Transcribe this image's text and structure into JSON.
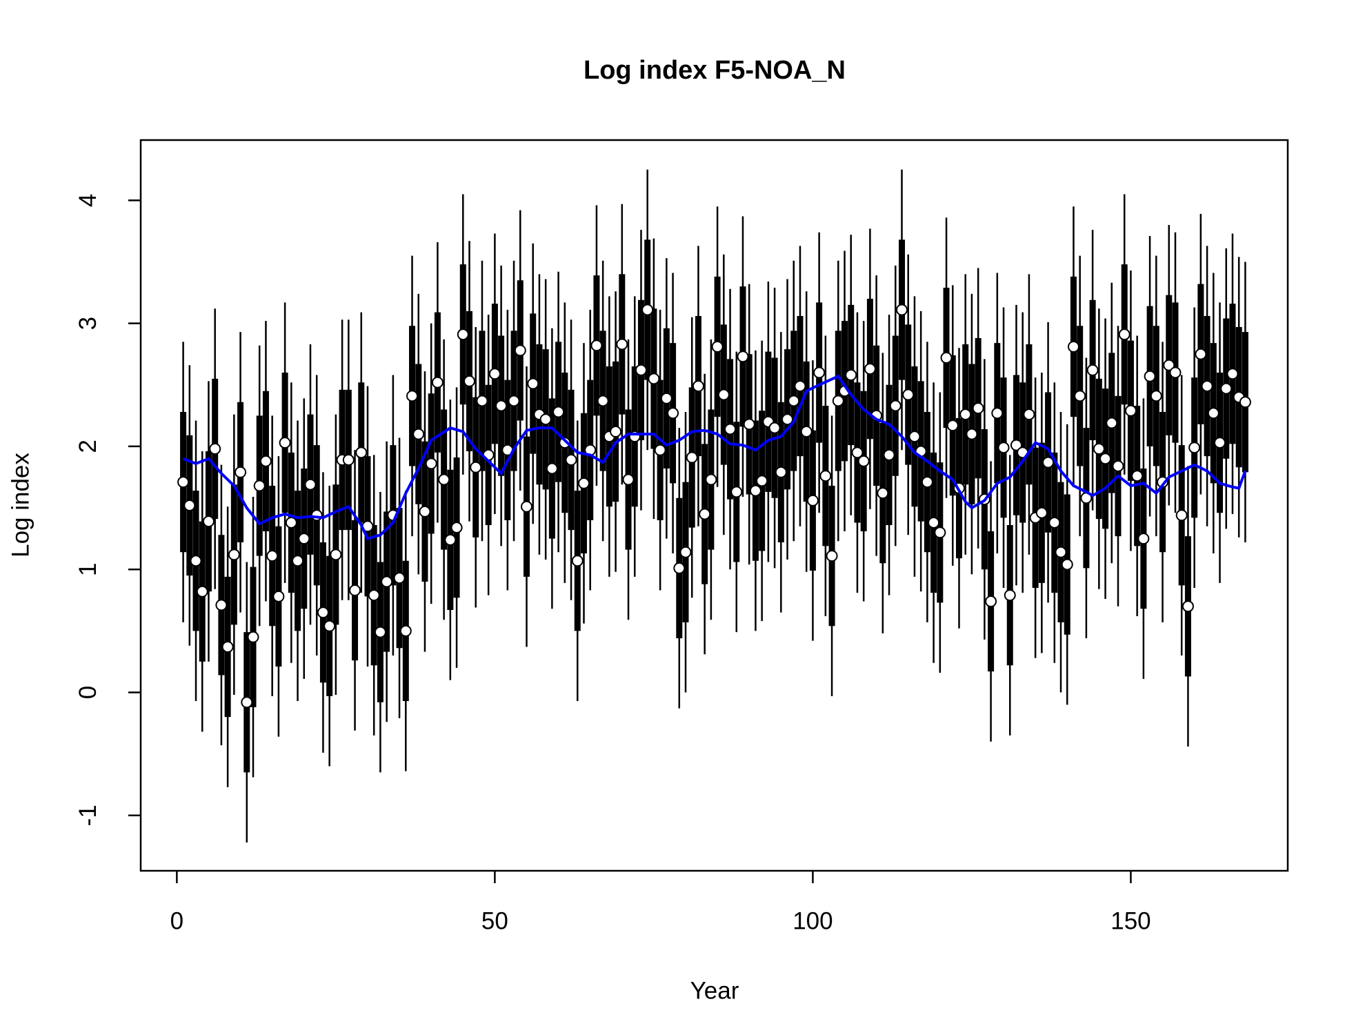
{
  "chart_data": {
    "type": "errorbar",
    "title": "Log index F5-NOA_N",
    "xlabel": "Year",
    "ylabel": "Log index",
    "x": [
      1,
      2,
      3,
      4,
      5,
      6,
      7,
      8,
      9,
      10,
      11,
      12,
      13,
      14,
      15,
      16,
      17,
      18,
      19,
      20,
      21,
      22,
      23,
      24,
      25,
      26,
      27,
      28,
      29,
      30,
      31,
      32,
      33,
      34,
      35,
      36,
      37,
      38,
      39,
      40,
      41,
      42,
      43,
      44,
      45,
      46,
      47,
      48,
      49,
      50,
      51,
      52,
      53,
      54,
      55,
      56,
      57,
      58,
      59,
      60,
      61,
      62,
      63,
      64,
      65,
      66,
      67,
      68,
      69,
      70,
      71,
      72,
      73,
      74,
      75,
      76,
      77,
      78,
      79,
      80,
      81,
      82,
      83,
      84,
      85,
      86,
      87,
      88,
      89,
      90,
      91,
      92,
      93,
      94,
      95,
      96,
      97,
      98,
      99,
      100,
      101,
      102,
      103,
      104,
      105,
      106,
      107,
      108,
      109,
      110,
      111,
      112,
      113,
      114,
      115,
      116,
      117,
      118,
      119,
      120,
      121,
      122,
      123,
      124,
      125,
      126,
      127,
      128,
      129,
      130,
      131,
      132,
      133,
      134,
      135,
      136,
      137,
      138,
      139,
      140,
      141,
      142,
      143,
      144,
      145,
      146,
      147,
      148,
      149,
      150,
      151,
      152,
      153,
      154,
      155,
      156,
      157,
      158,
      159,
      160,
      161,
      162,
      163,
      164,
      165,
      166,
      167,
      168
    ],
    "series": [
      {
        "color": "#000000",
        "se": 0.57,
        "values": [
          1.71,
          1.52,
          1.07,
          0.82,
          1.39,
          1.98,
          0.71,
          0.37,
          1.12,
          1.79,
          -0.08,
          0.45,
          1.68,
          1.88,
          1.11,
          0.78,
          2.03,
          1.38,
          1.07,
          1.25,
          1.69,
          1.44,
          0.65,
          0.54,
          1.12,
          1.89,
          1.89,
          0.83,
          1.95,
          1.35,
          0.79,
          0.49,
          0.9,
          1.44,
          0.93,
          0.5,
          2.41,
          2.1,
          1.47,
          1.86,
          2.52,
          1.73,
          1.24,
          1.34,
          2.91,
          2.53,
          1.83,
          2.37,
          1.93,
          2.59,
          2.33,
          1.97,
          2.37,
          2.78,
          1.51,
          2.51,
          2.26,
          2.22,
          1.82,
          2.28,
          2.03,
          1.89,
          1.07,
          1.7,
          1.97,
          2.82,
          2.37,
          2.08,
          2.12,
          2.83,
          1.73,
          2.08,
          2.62,
          3.11,
          2.55,
          1.97,
          2.39,
          2.27,
          1.01,
          1.14,
          1.91,
          2.49,
          1.45,
          1.73,
          2.81,
          2.42,
          2.14,
          1.63,
          2.73,
          2.18,
          1.64,
          1.72,
          2.2,
          2.15,
          1.79,
          2.22,
          2.37,
          2.49,
          2.12,
          1.56,
          2.6,
          1.76,
          1.11,
          2.37,
          2.45,
          2.58,
          1.95,
          1.88,
          2.63,
          2.25,
          1.62,
          1.93,
          2.33,
          3.11,
          2.42,
          2.08,
          1.96,
          1.71,
          1.38,
          1.3,
          2.72,
          2.17,
          1.66,
          2.26,
          2.1,
          2.31,
          1.57,
          0.74,
          2.27,
          1.99,
          0.79,
          2.01,
          1.95,
          2.26,
          1.42,
          1.46,
          1.87,
          1.38,
          1.14,
          1.04,
          2.81,
          2.41,
          1.58,
          2.62,
          1.98,
          1.9,
          2.19,
          1.84,
          2.91,
          2.29,
          1.76,
          1.25,
          2.57,
          2.41,
          1.71,
          2.66,
          2.6,
          1.44,
          0.7,
          1.99,
          2.75,
          2.49,
          2.27,
          2.03,
          2.47,
          2.59,
          2.4,
          2.36
        ]
      }
    ],
    "smooth": {
      "color": "#0000ff",
      "x": [
        1,
        3,
        5,
        7,
        9,
        11,
        13,
        15,
        17,
        19,
        21,
        23,
        25,
        27,
        29,
        30,
        32,
        34,
        36,
        38,
        40,
        43,
        45,
        47,
        49,
        51,
        53,
        55,
        57,
        59,
        61,
        63,
        65,
        67,
        69,
        71,
        73,
        75,
        77,
        79,
        81,
        83,
        85,
        87,
        89,
        91,
        93,
        95,
        97,
        99,
        101,
        104,
        106,
        108,
        110,
        112,
        114,
        116,
        118,
        120,
        122,
        124,
        125,
        127,
        129,
        131,
        133,
        135,
        137,
        139,
        141,
        143,
        144,
        146,
        148,
        150,
        152,
        154,
        156,
        158,
        160,
        162,
        164,
        166,
        167,
        168
      ],
      "values": [
        1.9,
        1.86,
        1.9,
        1.78,
        1.68,
        1.5,
        1.37,
        1.42,
        1.45,
        1.42,
        1.43,
        1.42,
        1.47,
        1.51,
        1.36,
        1.25,
        1.28,
        1.38,
        1.62,
        1.82,
        2.05,
        2.15,
        2.12,
        1.98,
        1.88,
        1.78,
        1.98,
        2.13,
        2.15,
        2.15,
        2.05,
        1.95,
        1.93,
        1.87,
        2.03,
        2.1,
        2.1,
        2.1,
        2.01,
        2.05,
        2.12,
        2.13,
        2.1,
        2.02,
        2.01,
        1.97,
        2.05,
        2.08,
        2.2,
        2.45,
        2.5,
        2.57,
        2.42,
        2.3,
        2.22,
        2.18,
        2.08,
        1.95,
        1.88,
        1.8,
        1.73,
        1.55,
        1.5,
        1.56,
        1.7,
        1.75,
        1.88,
        2.03,
        1.98,
        1.8,
        1.68,
        1.63,
        1.6,
        1.66,
        1.76,
        1.68,
        1.7,
        1.62,
        1.75,
        1.8,
        1.85,
        1.8,
        1.7,
        1.67,
        1.66,
        1.8
      ]
    },
    "xlim": [
      -5.68,
      174.68
    ],
    "ylim": [
      -1.45,
      4.49
    ],
    "xticks": [
      0,
      50,
      100,
      150
    ],
    "yticks": [
      -1,
      0,
      1,
      2,
      3,
      4
    ]
  }
}
